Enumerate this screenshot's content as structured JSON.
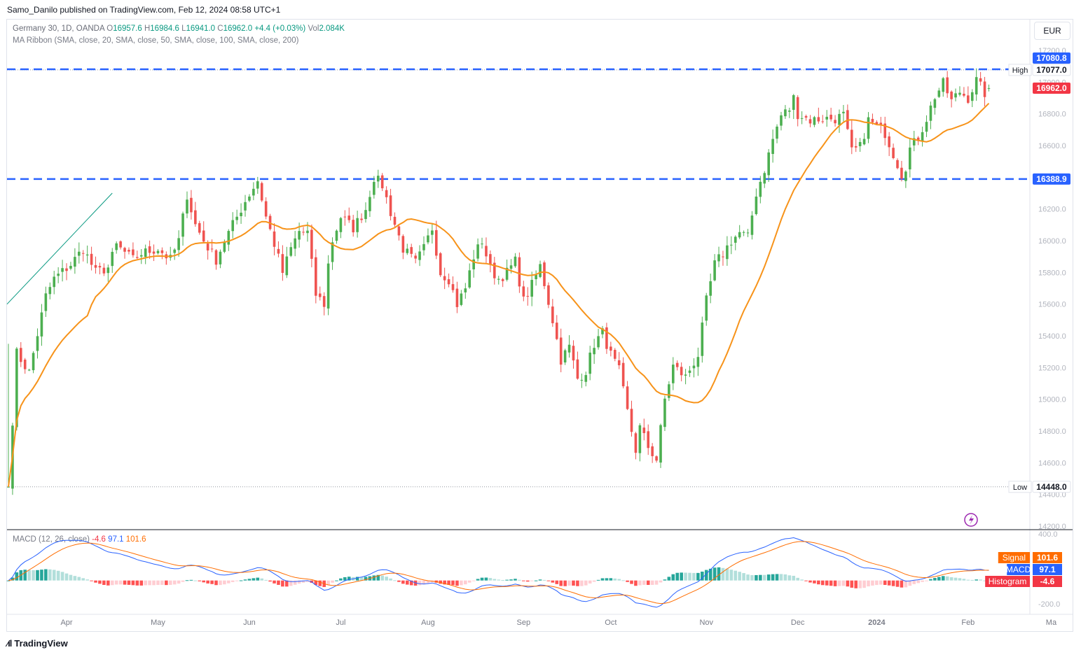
{
  "publisher_line": "Samo_Danilo published on TradingView.com, Feb 12, 2024 08:58 UTC+1",
  "currency_button": "EUR",
  "footer_brand": "TradingView",
  "legend": {
    "symbol": "Germany 30, 1D, OANDA",
    "o_label": "O",
    "o": "16957.6",
    "h_label": "H",
    "h": "16984.6",
    "l_label": "L",
    "l": "16941.0",
    "c_label": "C",
    "c": "16962.0",
    "chg": "+4.4 (+0.03%)",
    "vol_label": "Vol",
    "vol": "2.084K",
    "ma_ribbon": "MA Ribbon (SMA, close, 20, SMA, close, 50, SMA, close, 100, SMA, close, 200)",
    "macd_name": "MACD (12, 26, close)",
    "macd_hist": "-4.6",
    "macd_macd": "97.1",
    "macd_signal": "101.6"
  },
  "colors": {
    "up": "#089981",
    "down": "#f23645",
    "up_body": "#4caf50",
    "down_body": "#ef5350",
    "ma": "#f7931a",
    "level_line": "#2962ff",
    "macd_line": "#2962ff",
    "signal_line": "#ff6d00",
    "hist_up": "#26a69a",
    "hist_up_light": "#b2dfdb",
    "hist_down": "#ff5252",
    "hist_down_light": "#ffcdd2",
    "trend_line": "#089981"
  },
  "chart_data": [
    {
      "type": "candlestick",
      "title": "Germany 30, 1D, OANDA",
      "ylim": [
        14200,
        17200
      ],
      "price_axis_ticks": [
        "17200.0",
        "17000.0",
        "16800.0",
        "16600.0",
        "16400.0",
        "16200.0",
        "16000.0",
        "15800.0",
        "15600.0",
        "15400.0",
        "15200.0",
        "15000.0",
        "14800.0",
        "14600.0",
        "14400.0",
        "14200.0"
      ],
      "time_axis_ticks": [
        {
          "label": "Apr",
          "bar": 14
        },
        {
          "label": "May",
          "bar": 36
        },
        {
          "label": "Jun",
          "bar": 58
        },
        {
          "label": "Jul",
          "bar": 80
        },
        {
          "label": "Aug",
          "bar": 101
        },
        {
          "label": "Sep",
          "bar": 124
        },
        {
          "label": "Oct",
          "bar": 145
        },
        {
          "label": "Nov",
          "bar": 168
        },
        {
          "label": "Dec",
          "bar": 190
        },
        {
          "label": "2024",
          "bar": 209
        },
        {
          "label": "Feb",
          "bar": 231
        },
        {
          "label": "Ma",
          "bar": 251
        }
      ],
      "waypoints": [
        [
          0,
          14448
        ],
        [
          2,
          15290
        ],
        [
          5,
          15170
        ],
        [
          9,
          15650
        ],
        [
          11,
          15760
        ],
        [
          15,
          15850
        ],
        [
          18,
          15950
        ],
        [
          21,
          15800
        ],
        [
          24,
          15830
        ],
        [
          26,
          15970
        ],
        [
          30,
          15880
        ],
        [
          32,
          15920
        ],
        [
          36,
          15950
        ],
        [
          39,
          15880
        ],
        [
          41,
          16000
        ],
        [
          43,
          16290
        ],
        [
          45,
          16100
        ],
        [
          47,
          16000
        ],
        [
          50,
          15880
        ],
        [
          52,
          16000
        ],
        [
          54,
          16100
        ],
        [
          57,
          16250
        ],
        [
          60,
          16380
        ],
        [
          62,
          16150
        ],
        [
          64,
          15980
        ],
        [
          66,
          15800
        ],
        [
          68,
          15950
        ],
        [
          70,
          16060
        ],
        [
          72,
          16050
        ],
        [
          74,
          15660
        ],
        [
          76,
          15600
        ],
        [
          77,
          15850
        ],
        [
          78,
          16000
        ],
        [
          80,
          16150
        ],
        [
          83,
          16080
        ],
        [
          86,
          16200
        ],
        [
          88,
          16400
        ],
        [
          90,
          16350
        ],
        [
          92,
          16180
        ],
        [
          95,
          15950
        ],
        [
          98,
          15860
        ],
        [
          100,
          15950
        ],
        [
          102,
          16080
        ],
        [
          104,
          15800
        ],
        [
          106,
          15760
        ],
        [
          108,
          15600
        ],
        [
          110,
          15700
        ],
        [
          112,
          15900
        ],
        [
          114,
          16000
        ],
        [
          116,
          15820
        ],
        [
          118,
          15760
        ],
        [
          120,
          15800
        ],
        [
          122,
          15870
        ],
        [
          124,
          15620
        ],
        [
          126,
          15720
        ],
        [
          128,
          15840
        ],
        [
          129,
          15730
        ],
        [
          131,
          15500
        ],
        [
          133,
          15250
        ],
        [
          135,
          15330
        ],
        [
          137,
          15130
        ],
        [
          139,
          15180
        ],
        [
          141,
          15350
        ],
        [
          143,
          15420
        ],
        [
          145,
          15280
        ],
        [
          147,
          15180
        ],
        [
          149,
          14920
        ],
        [
          151,
          14680
        ],
        [
          152,
          14820
        ],
        [
          154,
          14700
        ],
        [
          156,
          14620
        ],
        [
          158,
          15000
        ],
        [
          160,
          15210
        ],
        [
          163,
          15140
        ],
        [
          166,
          15280
        ],
        [
          168,
          15620
        ],
        [
          170,
          15850
        ],
        [
          172,
          15920
        ],
        [
          174,
          16000
        ],
        [
          176,
          16050
        ],
        [
          178,
          16020
        ],
        [
          180,
          16300
        ],
        [
          182,
          16450
        ],
        [
          184,
          16640
        ],
        [
          186,
          16790
        ],
        [
          188,
          16830
        ],
        [
          189,
          16900
        ],
        [
          190,
          16800
        ],
        [
          193,
          16760
        ],
        [
          196,
          16770
        ],
        [
          199,
          16770
        ],
        [
          201,
          16790
        ],
        [
          203,
          16560
        ],
        [
          205,
          16590
        ],
        [
          207,
          16760
        ],
        [
          209,
          16720
        ],
        [
          211,
          16680
        ],
        [
          213,
          16550
        ],
        [
          215,
          16420
        ],
        [
          216,
          16470
        ],
        [
          217,
          16580
        ],
        [
          219,
          16650
        ],
        [
          221,
          16770
        ],
        [
          223,
          16910
        ],
        [
          225,
          16990
        ],
        [
          227,
          16880
        ],
        [
          229,
          16940
        ],
        [
          231,
          16900
        ],
        [
          233,
          17010
        ],
        [
          235,
          16930
        ],
        [
          236,
          16962
        ]
      ],
      "overlays": {
        "ma_20": true,
        "resistance_level": 17080.8,
        "support_level": 16388.9,
        "period_high": 17077.0,
        "period_low": 14448.0,
        "last_price": 16962.0
      },
      "price_labels": {
        "resistance": "17080.8",
        "high_text": "High",
        "high": "17077.0",
        "last": "16962.0",
        "support": "16388.9",
        "low_text": "Low",
        "low": "14448.0"
      }
    },
    {
      "type": "line",
      "title": "MACD (12, 26, close)",
      "ylim": [
        -300,
        460
      ],
      "axis_ticks": [
        "400.0",
        "-200.0"
      ],
      "series": [
        {
          "name": "MACD",
          "value": 97.1
        },
        {
          "name": "Signal",
          "value": 101.6
        },
        {
          "name": "Histogram",
          "value": -4.6
        }
      ],
      "labels": {
        "signal": "Signal",
        "signal_v": "101.6",
        "macd": "MACD",
        "macd_v": "97.1",
        "hist": "Histogram",
        "hist_v": "-4.6"
      }
    }
  ]
}
